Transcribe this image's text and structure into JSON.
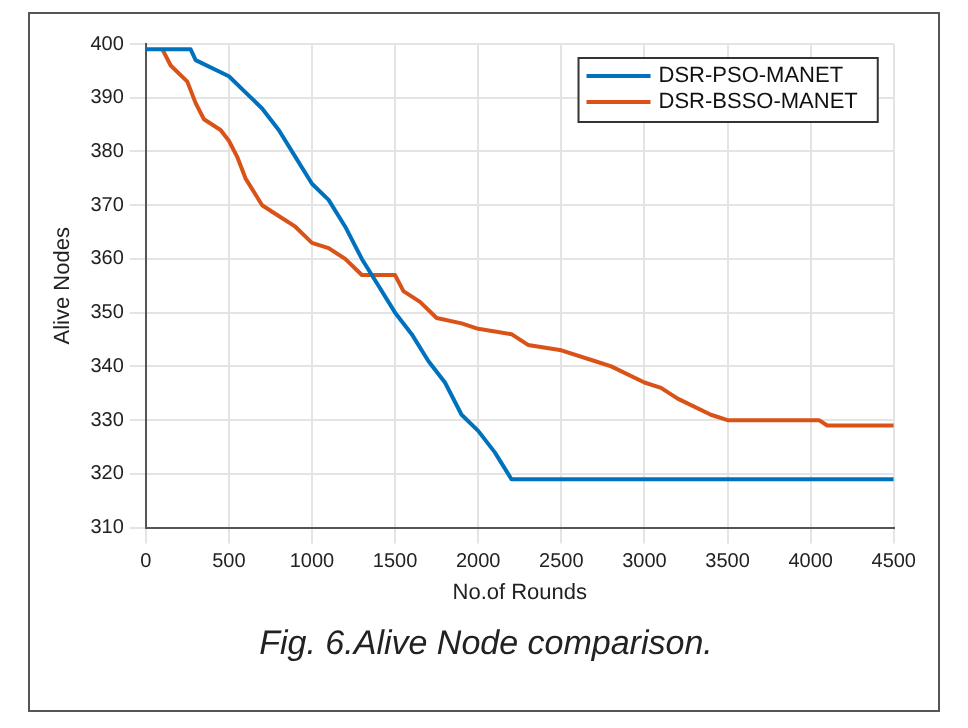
{
  "chart_data": {
    "type": "line",
    "xlabel": "No.of Rounds",
    "ylabel": "Alive Nodes",
    "annotations": [
      "Fig. 6.Alive Node comparison."
    ],
    "xlim": [
      0,
      4500
    ],
    "xticks": [
      0,
      500,
      1000,
      1500,
      2000,
      2500,
      3000,
      3500,
      4000,
      4500
    ],
    "ylim": [
      310,
      400
    ],
    "yticks": [
      310,
      320,
      330,
      340,
      350,
      360,
      370,
      380,
      390,
      400
    ],
    "grid": true,
    "legend": "top right",
    "marker": "none",
    "line_style": "solid",
    "series": [
      {
        "name": "DSR-PSO-MANET",
        "color": "#0072bd",
        "x": [
          0,
          270,
          300,
          500,
          600,
          700,
          800,
          900,
          1000,
          1100,
          1200,
          1300,
          1400,
          1500,
          1600,
          1700,
          1800,
          1900,
          2000,
          2100,
          2200,
          4500
        ],
        "values": [
          399,
          399,
          397,
          394,
          391,
          388,
          384,
          379,
          374,
          371,
          366,
          360,
          355,
          350,
          346,
          341,
          337,
          331,
          328,
          324,
          319,
          319
        ]
      },
      {
        "name": "DSR-BSSO-MANET",
        "color": "#d95319",
        "x": [
          100,
          150,
          250,
          300,
          350,
          450,
          500,
          550,
          600,
          700,
          800,
          900,
          1000,
          1100,
          1200,
          1300,
          1500,
          1550,
          1650,
          1750,
          1900,
          2000,
          2200,
          2300,
          2500,
          2700,
          2800,
          3000,
          3100,
          3200,
          3400,
          3500,
          4050,
          4100,
          4500
        ],
        "values": [
          399,
          396,
          393,
          389,
          386,
          384,
          382,
          379,
          375,
          370,
          368,
          366,
          363,
          362,
          360,
          357,
          357,
          354,
          352,
          349,
          348,
          347,
          346,
          344,
          343,
          341,
          340,
          337,
          336,
          334,
          331,
          330,
          330,
          329,
          329
        ]
      }
    ]
  }
}
